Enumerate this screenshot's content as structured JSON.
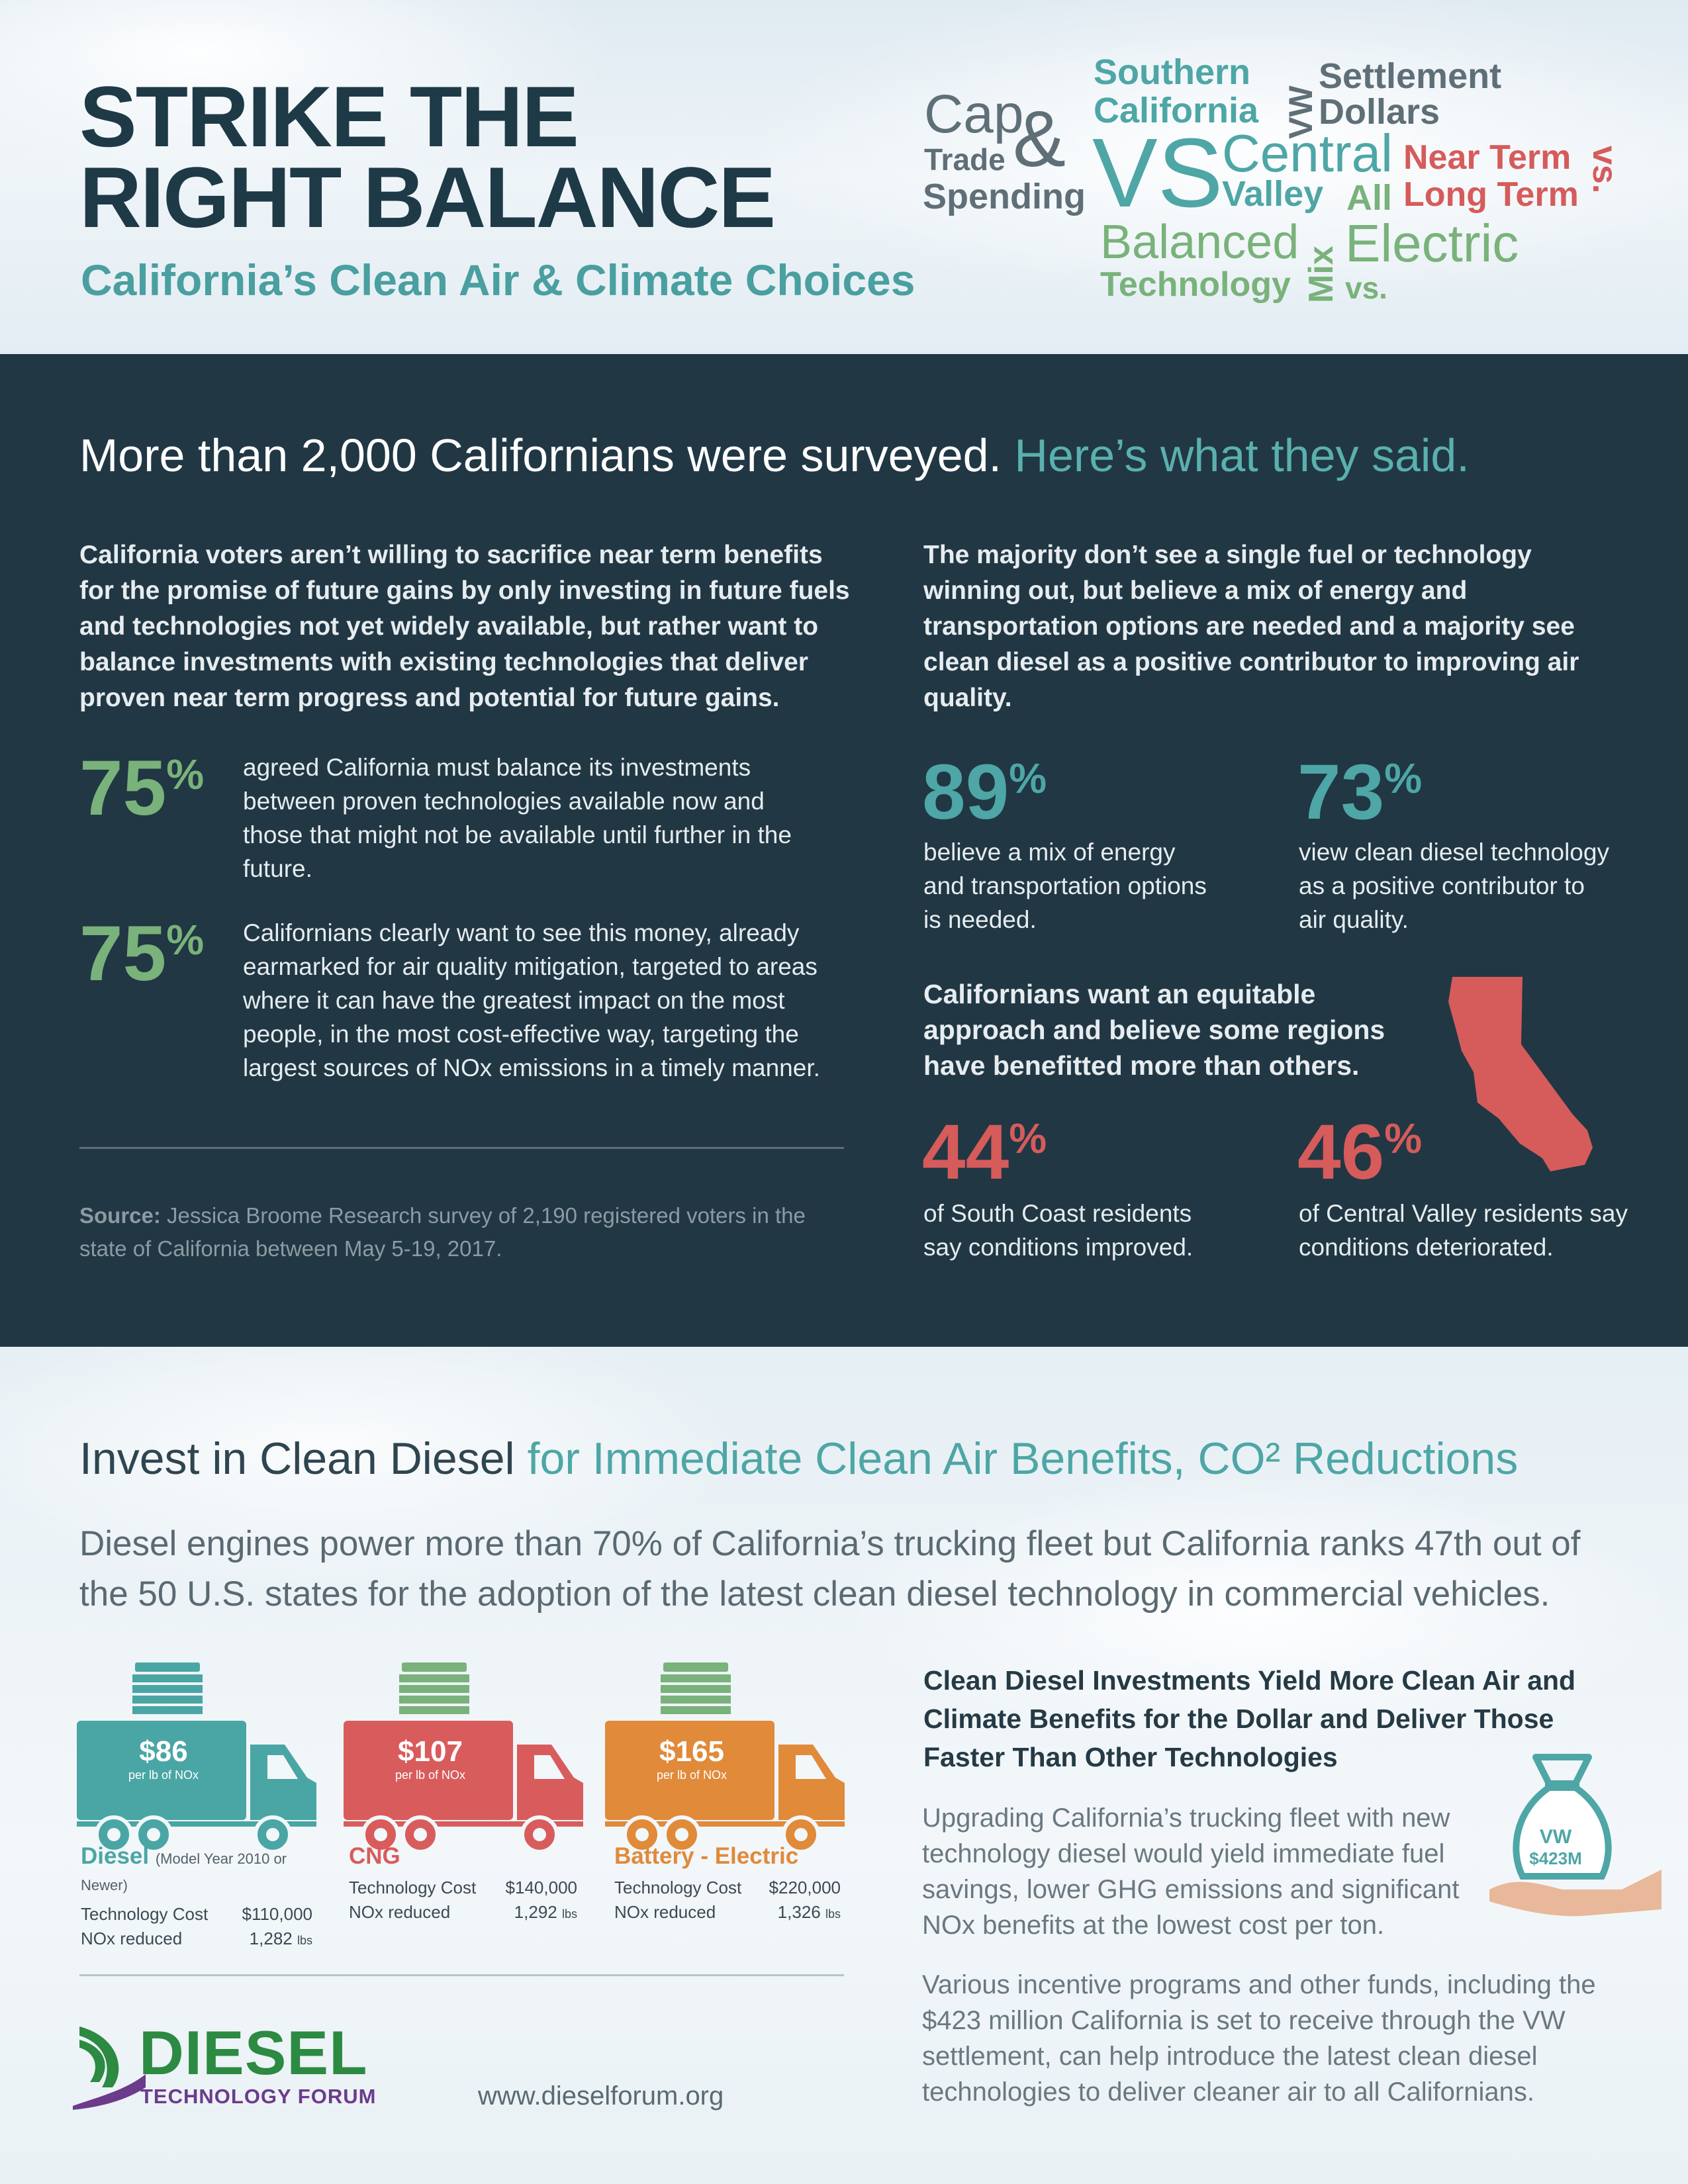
{
  "header": {
    "title_line1": "STRIKE THE",
    "title_line2": "RIGHT BALANCE",
    "subtitle": "California’s Clean Air & Climate Choices"
  },
  "word_cloud": {
    "cap": "Cap",
    "ampersand": "&",
    "trade": "Trade",
    "spending": "Spending",
    "southern": "Southern",
    "california": "California",
    "vw": "VW",
    "settlement": "Settlement",
    "dollars": "Dollars",
    "vs_big": "VS",
    "central": "Central",
    "valley": "Valley",
    "all": "All",
    "near_term": "Near Term",
    "long_term": "Long Term",
    "vs_vertical": "vs.",
    "balanced": "Balanced",
    "technology": "Technology",
    "mix": "Mix",
    "electric": "Electric",
    "vs_small": "vs."
  },
  "survey": {
    "heading_main": "More than 2,000 Californians were surveyed.",
    "heading_accent": "Here’s what they said.",
    "left_intro": "California voters aren’t willing to sacrifice near term benefits for the promise of future gains by only investing in future fuels and technologies not yet widely available, but rather want to balance investments with existing technologies that deliver proven near term progress and potential for future gains.",
    "stats_left": [
      {
        "value": "75",
        "text": "agreed California must balance its investments between proven technologies available now and those that might not be available until further in the future."
      },
      {
        "value": "75",
        "text": "Californians clearly want to see this money, already earmarked for air quality mitigation, targeted to areas where it can have the greatest impact on the most people, in the most cost-effective way, targeting the largest sources of NOx emissions in a timely manner."
      }
    ],
    "percent_symbol": "%",
    "source_label": "Source:",
    "source_text": "Jessica Broome Research survey of 2,190 registered voters in the state of California between May 5-19, 2017.",
    "right_intro": "The majority don’t see a single fuel or technology winning out, but believe a mix of energy and transportation options are needed and a majority see clean diesel as a positive contributor to improving air quality.",
    "stats_right": [
      {
        "value": "89",
        "text": "believe a mix of energy and transportation options is needed."
      },
      {
        "value": "73",
        "text": "view clean diesel technology as a positive contributor to air quality."
      }
    ],
    "equitable_text": "Californians want an equitable approach and believe some regions have benefitted more than others.",
    "stats_regions": [
      {
        "value": "44",
        "text": "of South Coast residents say conditions improved."
      },
      {
        "value": "46",
        "text": "of Central Valley residents say conditions deteriorated."
      }
    ]
  },
  "invest": {
    "heading_main": "Invest in Clean Diesel",
    "heading_accent": "for Immediate Clean Air Benefits, CO² Reductions",
    "lead": "Diesel engines power more than 70% of California’s trucking fleet but California ranks 47th out of the 50 U.S. states for the adoption of the latest clean diesel technology in commercial vehicles.",
    "per_unit": "per lb of NOx",
    "tech_cost_label": "Technology Cost",
    "nox_label": "NOx reduced",
    "lbs_unit": "lbs",
    "trucks": [
      {
        "name": "Diesel",
        "note": "(Model Year 2010 or Newer)",
        "price": "$86",
        "cost": "$110,000",
        "nox": "1,282",
        "color": "#4aa6a4"
      },
      {
        "name": "CNG",
        "note": "",
        "price": "$107",
        "cost": "$140,000",
        "nox": "1,292",
        "color": "#d95c5c"
      },
      {
        "name": "Battery - Electric",
        "note": "",
        "price": "$165",
        "cost": "$220,000",
        "nox": "1,326",
        "color": "#e08a3a"
      }
    ],
    "cd_heading": "Clean Diesel Investments Yield More Clean Air and Climate Benefits for the Dollar and Deliver Those Faster Than Other Technologies",
    "cd_p1": "Upgrading California’s trucking fleet with new technology diesel would yield immediate fuel savings, lower GHG emissions and significant NOx benefits at the lowest cost per ton.",
    "cd_p2": "Various incentive programs and other funds, including the $423 million California is set to receive through the VW settlement, can help introduce the latest clean diesel technologies to deliver cleaner air to all Californians.",
    "bag_line1": "VW",
    "bag_line2": "$423M"
  },
  "footer": {
    "logo_word": "DIESEL",
    "logo_sub": "TECHNOLOGY FORUM",
    "url": "www.dieselforum.org"
  },
  "colors": {
    "navy": "#213744",
    "teal": "#4ea6a6",
    "green": "#79b27a",
    "red": "#d65b5b",
    "orange": "#e08a3a"
  }
}
